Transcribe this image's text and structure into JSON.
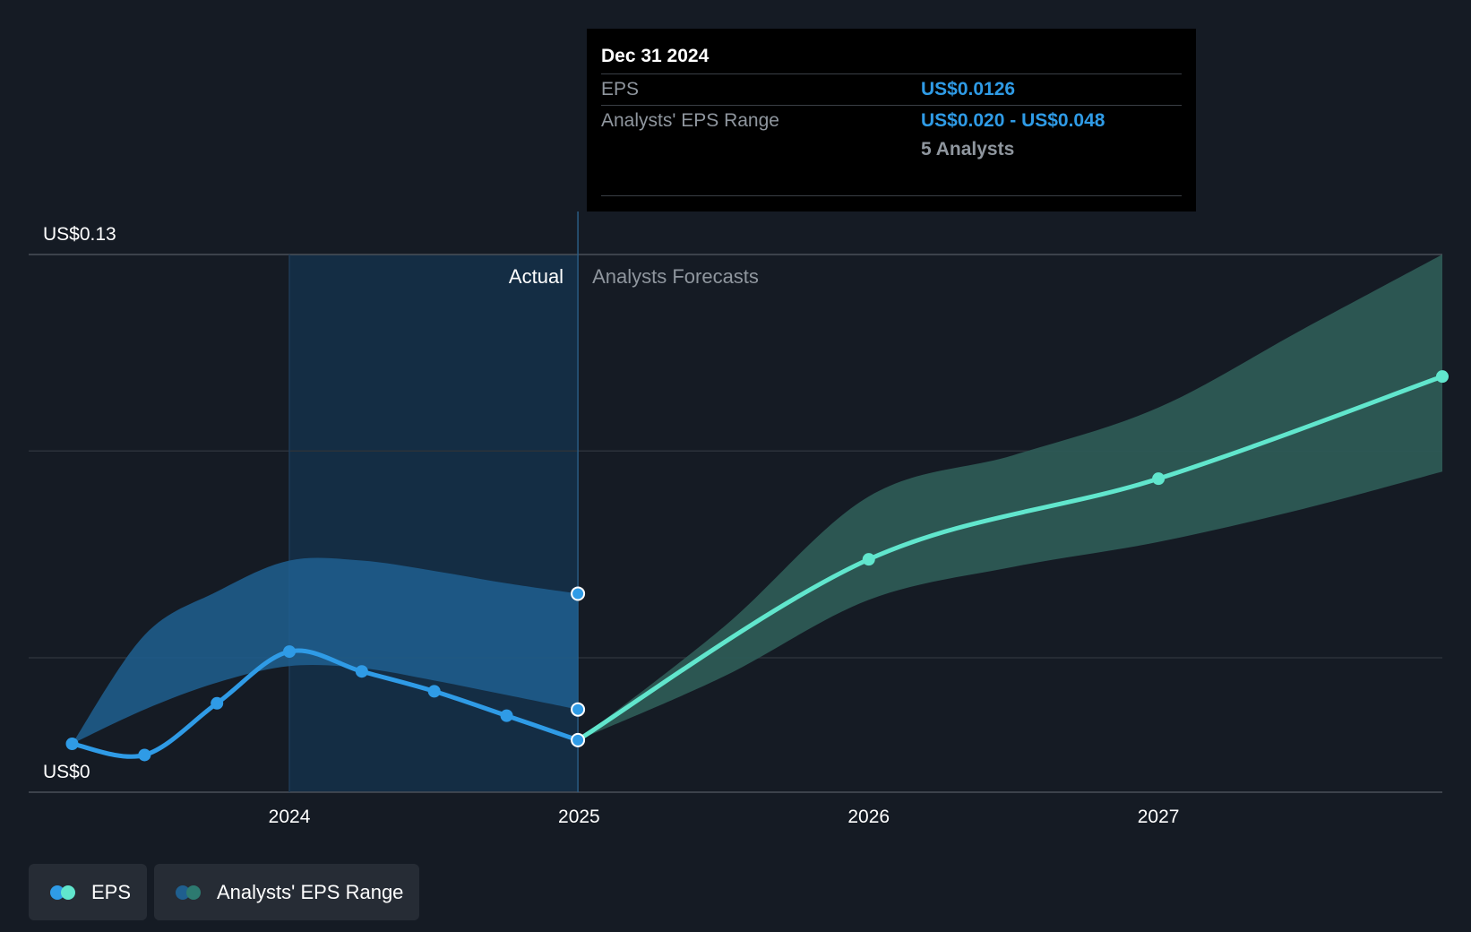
{
  "chart_data": {
    "type": "line",
    "y_axis_labels": {
      "top": "US$0.13",
      "bottom": "US$0"
    },
    "ylim": [
      0,
      0.13
    ],
    "xlim": [
      2023.1,
      2027.98
    ],
    "x_ticks": [
      {
        "value": 2024,
        "label": "2024"
      },
      {
        "value": 2025,
        "label": "2025"
      },
      {
        "value": 2026,
        "label": "2026"
      },
      {
        "value": 2027,
        "label": "2027"
      }
    ],
    "gridlines": [
      0.0325,
      0.0825,
      0.13
    ],
    "regions": {
      "actual_label": "Actual",
      "forecast_label": "Analysts Forecasts",
      "divider_x": 2024.996,
      "highlight_start": 2024.0
    },
    "eps_actual": [
      {
        "x": 2023.25,
        "y": 0.0117
      },
      {
        "x": 2023.5,
        "y": 0.009
      },
      {
        "x": 2023.75,
        "y": 0.0215
      },
      {
        "x": 2024.0,
        "y": 0.034
      },
      {
        "x": 2024.25,
        "y": 0.0292
      },
      {
        "x": 2024.5,
        "y": 0.0244
      },
      {
        "x": 2024.75,
        "y": 0.0185
      },
      {
        "x": 2024.996,
        "y": 0.0126
      }
    ],
    "range_actual": {
      "x": [
        2023.25,
        2023.5,
        2023.75,
        2024.0,
        2024.25,
        2024.5,
        2024.75,
        2024.996
      ],
      "high": [
        0.0117,
        0.038,
        0.0485,
        0.056,
        0.056,
        0.0535,
        0.0505,
        0.048
      ],
      "low": [
        0.0117,
        0.02,
        0.0265,
        0.0305,
        0.03,
        0.027,
        0.0235,
        0.02
      ]
    },
    "eps_forecast": [
      {
        "x": 2024.996,
        "y": 0.0126
      },
      {
        "x": 2026.0,
        "y": 0.0563
      },
      {
        "x": 2027.0,
        "y": 0.0758
      },
      {
        "x": 2027.98,
        "y": 0.1005
      }
    ],
    "range_forecast": {
      "x": [
        2024.996,
        2025.5,
        2026.0,
        2026.5,
        2027.0,
        2027.5,
        2027.98
      ],
      "high": [
        0.0126,
        0.04,
        0.0715,
        0.0815,
        0.093,
        0.112,
        0.13
      ],
      "low": [
        0.0126,
        0.028,
        0.0465,
        0.0545,
        0.0605,
        0.0685,
        0.0775
      ]
    },
    "colors": {
      "eps_actual": "#2f9be6",
      "eps_forecast": "#61e6cd",
      "range_actual": "#1f5f8f",
      "range_forecast": "#2d5a55",
      "highlight": "#14304a",
      "grid": "#2c323a"
    }
  },
  "tooltip": {
    "date": "Dec 31 2024",
    "eps_label": "EPS",
    "eps_value": "US$0.0126",
    "range_label": "Analysts' EPS Range",
    "range_value": "US$0.020 - US$0.048",
    "analysts": "5 Analysts"
  },
  "legend": {
    "eps_label": "EPS",
    "range_label": "Analysts' EPS Range",
    "eps_colors": [
      "#2f9be6",
      "#61e6cd"
    ],
    "range_colors": [
      "#1f5f8f",
      "#2d7a70"
    ]
  }
}
